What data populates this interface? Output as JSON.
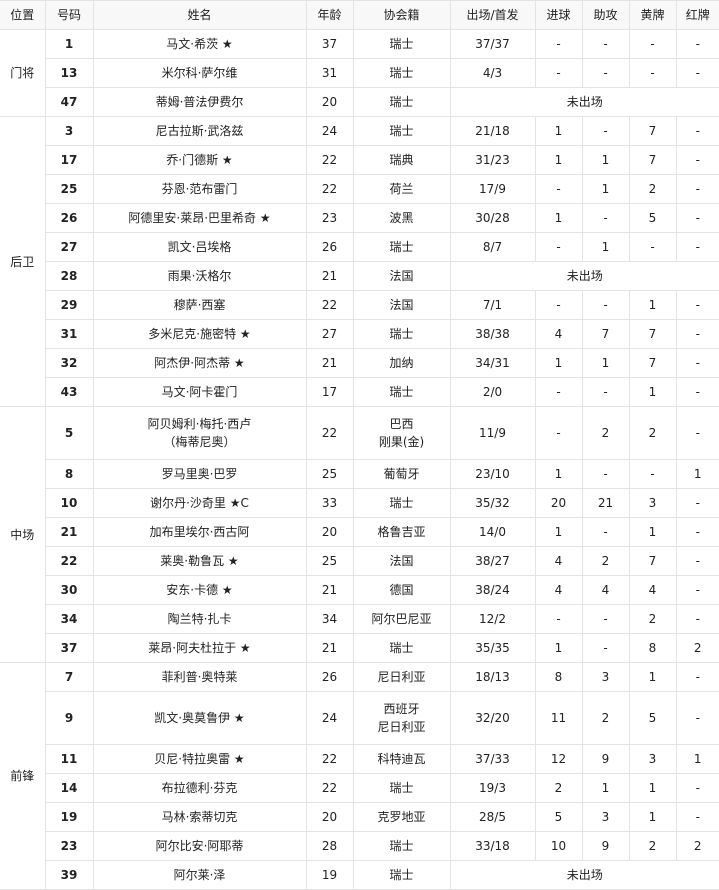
{
  "headers": [
    "位置",
    "号码",
    "姓名",
    "年龄",
    "协会籍",
    "出场/首发",
    "进球",
    "助攻",
    "黄牌",
    "红牌"
  ],
  "groups": [
    {
      "position": "门将",
      "players": [
        {
          "no": "1",
          "name": "马文·希茨 ★",
          "age": "37",
          "nat": "瑞士",
          "apps": "37/37",
          "g": "-",
          "a": "-",
          "y": "-",
          "r": "-"
        },
        {
          "no": "13",
          "name": "米尔科·萨尔维",
          "age": "31",
          "nat": "瑞士",
          "apps": "4/3",
          "g": "-",
          "a": "-",
          "y": "-",
          "r": "-"
        },
        {
          "no": "47",
          "name": "蒂姆·普法伊费尔",
          "age": "20",
          "nat": "瑞士",
          "na": "未出场"
        }
      ]
    },
    {
      "position": "后卫",
      "players": [
        {
          "no": "3",
          "name": "尼古拉斯·武洛兹",
          "age": "24",
          "nat": "瑞士",
          "apps": "21/18",
          "g": "1",
          "a": "-",
          "y": "7",
          "r": "-"
        },
        {
          "no": "17",
          "name": "乔·门德斯 ★",
          "age": "22",
          "nat": "瑞典",
          "apps": "31/23",
          "g": "1",
          "a": "1",
          "y": "7",
          "r": "-"
        },
        {
          "no": "25",
          "name": "芬恩·范布雷门",
          "age": "22",
          "nat": "荷兰",
          "apps": "17/9",
          "g": "-",
          "a": "1",
          "y": "2",
          "r": "-"
        },
        {
          "no": "26",
          "name": "阿德里安·莱昂·巴里希奇 ★",
          "age": "23",
          "nat": "波黑",
          "apps": "30/28",
          "g": "1",
          "a": "-",
          "y": "5",
          "r": "-"
        },
        {
          "no": "27",
          "name": "凯文·吕埃格",
          "age": "26",
          "nat": "瑞士",
          "apps": "8/7",
          "g": "-",
          "a": "1",
          "y": "-",
          "r": "-"
        },
        {
          "no": "28",
          "name": "雨果·沃格尔",
          "age": "21",
          "nat": "法国",
          "na": "未出场"
        },
        {
          "no": "29",
          "name": "穆萨·西塞",
          "age": "22",
          "nat": "法国",
          "apps": "7/1",
          "g": "-",
          "a": "-",
          "y": "1",
          "r": "-"
        },
        {
          "no": "31",
          "name": "多米尼克·施密特 ★",
          "age": "27",
          "nat": "瑞士",
          "apps": "38/38",
          "g": "4",
          "a": "7",
          "y": "7",
          "r": "-"
        },
        {
          "no": "32",
          "name": "阿杰伊·阿杰蒂 ★",
          "age": "21",
          "nat": "加纳",
          "apps": "34/31",
          "g": "1",
          "a": "1",
          "y": "7",
          "r": "-"
        },
        {
          "no": "43",
          "name": "马文·阿卡霍门",
          "age": "17",
          "nat": "瑞士",
          "apps": "2/0",
          "g": "-",
          "a": "-",
          "y": "1",
          "r": "-"
        }
      ]
    },
    {
      "position": "中场",
      "players": [
        {
          "no": "5",
          "name": "阿贝姆利·梅托·西卢",
          "name2": "（梅蒂尼奥）",
          "age": "22",
          "nat": "巴西",
          "nat2": "刚果(金)",
          "apps": "11/9",
          "g": "-",
          "a": "2",
          "y": "2",
          "r": "-"
        },
        {
          "no": "8",
          "name": "罗马里奥·巴罗",
          "age": "25",
          "nat": "葡萄牙",
          "apps": "23/10",
          "g": "1",
          "a": "-",
          "y": "-",
          "r": "1"
        },
        {
          "no": "10",
          "name": "谢尔丹·沙奇里 ★C",
          "age": "33",
          "nat": "瑞士",
          "apps": "35/32",
          "g": "20",
          "a": "21",
          "y": "3",
          "r": "-"
        },
        {
          "no": "21",
          "name": "加布里埃尔·西古阿",
          "age": "20",
          "nat": "格鲁吉亚",
          "apps": "14/0",
          "g": "1",
          "a": "-",
          "y": "1",
          "r": "-"
        },
        {
          "no": "22",
          "name": "莱奥·勒鲁瓦 ★",
          "age": "25",
          "nat": "法国",
          "apps": "38/27",
          "g": "4",
          "a": "2",
          "y": "7",
          "r": "-"
        },
        {
          "no": "30",
          "name": "安东·卡德 ★",
          "age": "21",
          "nat": "德国",
          "apps": "38/24",
          "g": "4",
          "a": "4",
          "y": "4",
          "r": "-"
        },
        {
          "no": "34",
          "name": "陶兰特·扎卡",
          "age": "34",
          "nat": "阿尔巴尼亚",
          "apps": "12/2",
          "g": "-",
          "a": "-",
          "y": "2",
          "r": "-"
        },
        {
          "no": "37",
          "name": "莱昂·阿夫杜拉于 ★",
          "age": "21",
          "nat": "瑞士",
          "apps": "35/35",
          "g": "1",
          "a": "-",
          "y": "8",
          "r": "2"
        }
      ]
    },
    {
      "position": "前锋",
      "players": [
        {
          "no": "7",
          "name": "菲利普·奥特莱",
          "age": "26",
          "nat": "尼日利亚",
          "apps": "18/13",
          "g": "8",
          "a": "3",
          "y": "1",
          "r": "-"
        },
        {
          "no": "9",
          "name": "凯文·奥莫鲁伊 ★",
          "age": "24",
          "nat": "西班牙",
          "nat2": "尼日利亚",
          "apps": "32/20",
          "g": "11",
          "a": "2",
          "y": "5",
          "r": "-"
        },
        {
          "no": "11",
          "name": "贝尼·特拉奥雷 ★",
          "age": "22",
          "nat": "科特迪瓦",
          "apps": "37/33",
          "g": "12",
          "a": "9",
          "y": "3",
          "r": "1"
        },
        {
          "no": "14",
          "name": "布拉德利·芬克",
          "age": "22",
          "nat": "瑞士",
          "apps": "19/3",
          "g": "2",
          "a": "1",
          "y": "1",
          "r": "-"
        },
        {
          "no": "19",
          "name": "马林·索蒂切克",
          "age": "20",
          "nat": "克罗地亚",
          "apps": "28/5",
          "g": "5",
          "a": "3",
          "y": "1",
          "r": "-"
        },
        {
          "no": "23",
          "name": "阿尔比安·阿耶蒂",
          "age": "28",
          "nat": "瑞士",
          "apps": "33/18",
          "g": "10",
          "a": "9",
          "y": "2",
          "r": "2"
        },
        {
          "no": "39",
          "name": "阿尔莱·泽",
          "age": "19",
          "nat": "瑞士",
          "na": "未出场"
        }
      ]
    }
  ]
}
